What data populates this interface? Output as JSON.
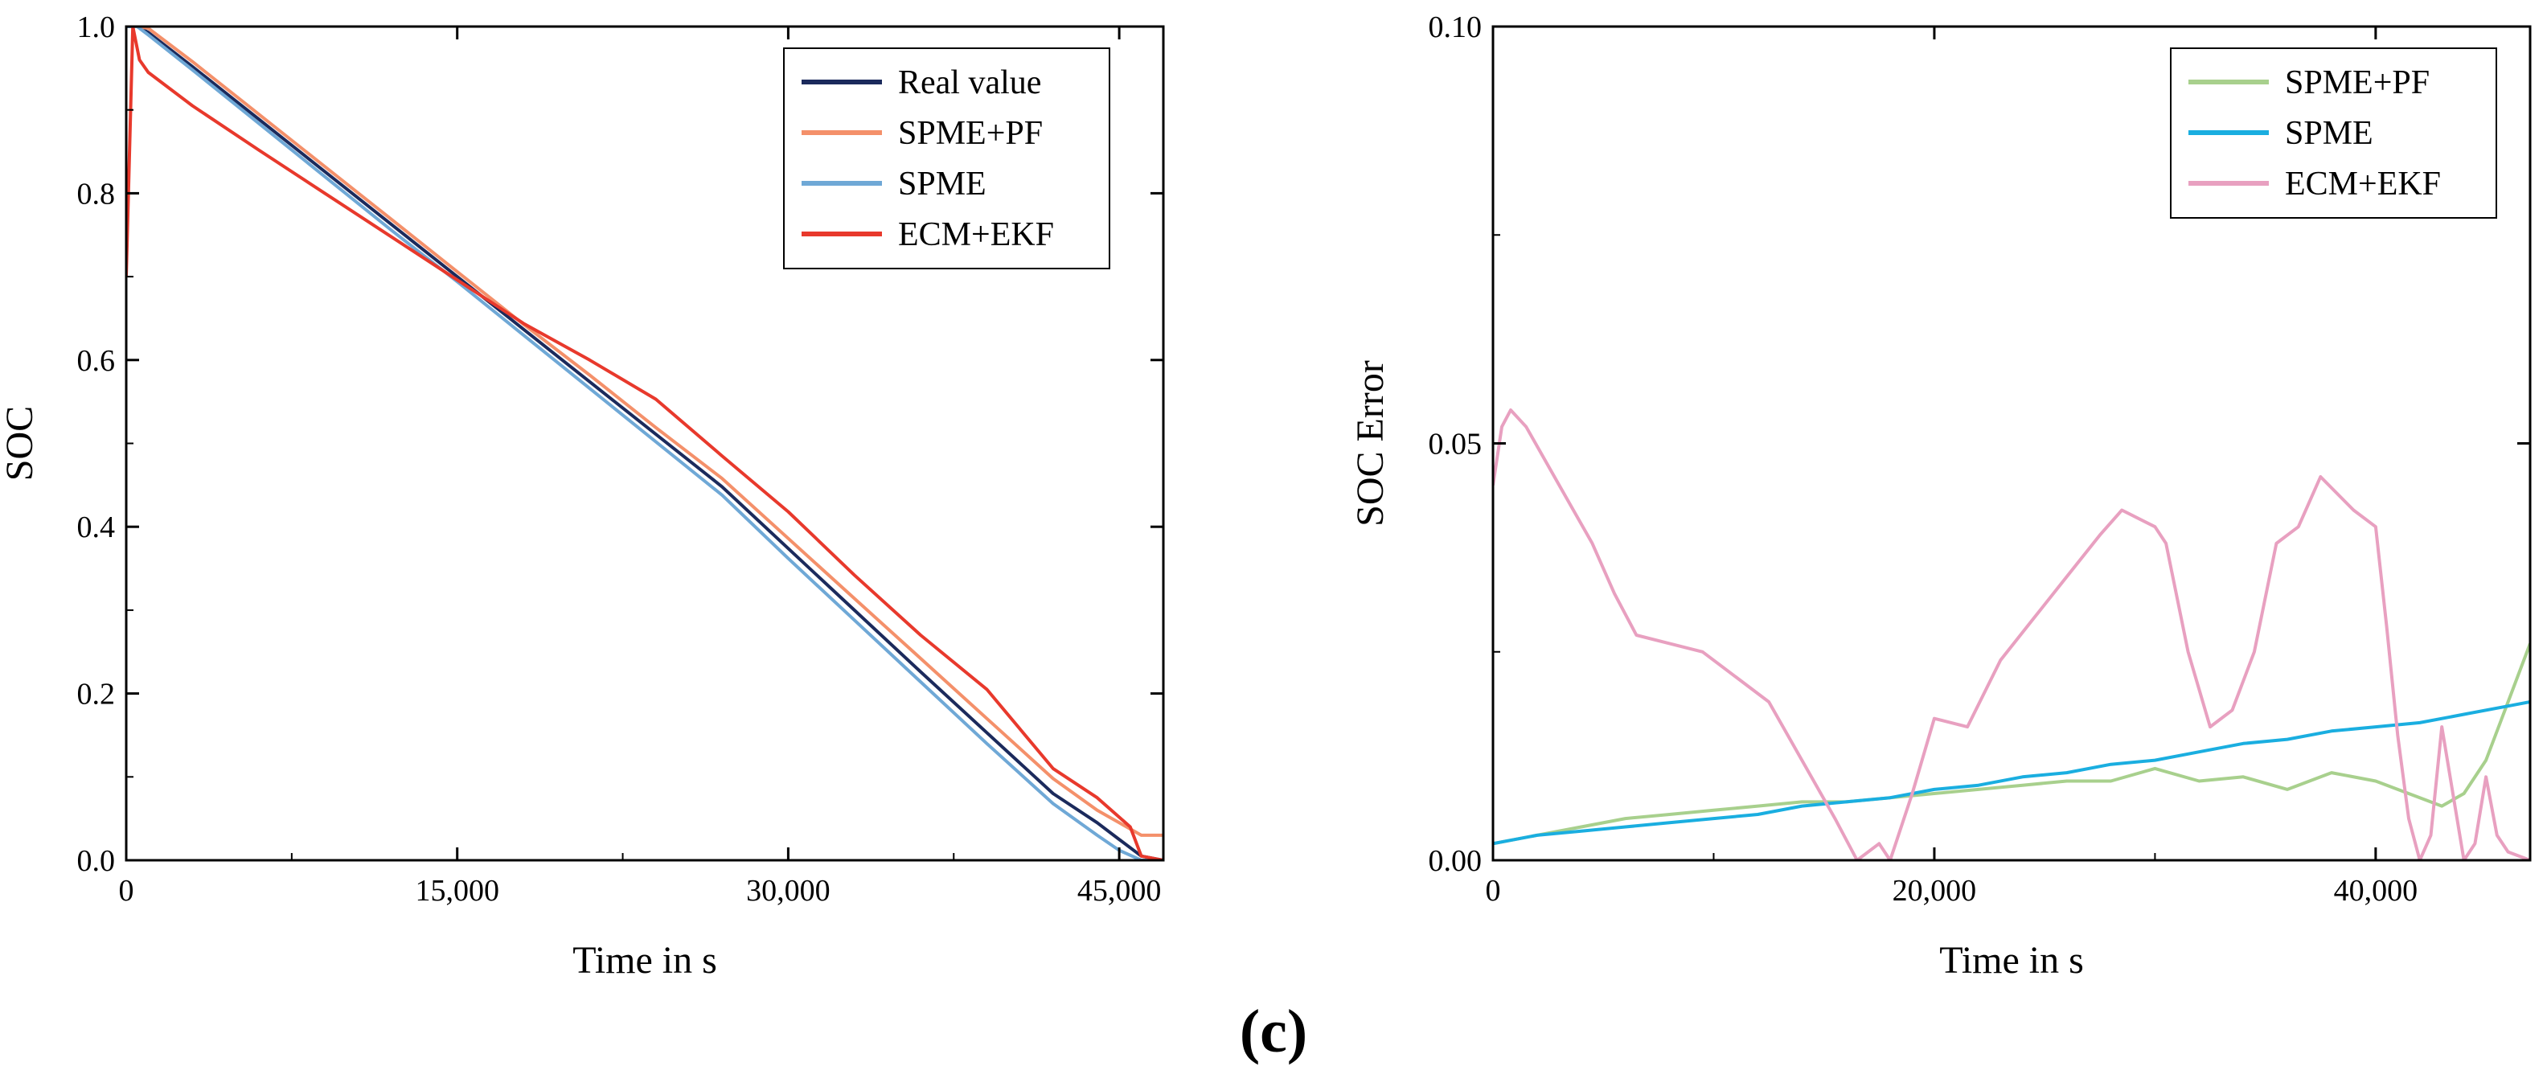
{
  "figure": {
    "caption": "(c)"
  },
  "chart_data": [
    {
      "type": "line",
      "xlabel": "Time in s",
      "ylabel": "SOC",
      "xlim": [
        0,
        47000
      ],
      "ylim": [
        0,
        1.0
      ],
      "xticks": [
        0,
        15000,
        30000,
        45000
      ],
      "xtick_labels": [
        "0",
        "15,000",
        "30,000",
        "45,000"
      ],
      "yticks": [
        0,
        0.2,
        0.4,
        0.6,
        0.8,
        1.0
      ],
      "ytick_labels": [
        "0.0",
        "0.2",
        "0.4",
        "0.6",
        "0.8",
        "1.0"
      ],
      "legend_position": "top-right",
      "series": [
        {
          "name": "Real value",
          "color": "#1b2a5c",
          "x": [
            0,
            500,
            1000,
            3000,
            6000,
            9000,
            12000,
            15000,
            18000,
            21000,
            24000,
            27000,
            30000,
            33000,
            36000,
            39000,
            42000,
            44000,
            45000,
            46000,
            47000
          ],
          "y": [
            1.0,
            1.0,
            0.993,
            0.952,
            0.889,
            0.826,
            0.763,
            0.7,
            0.637,
            0.574,
            0.511,
            0.448,
            0.374,
            0.3,
            0.226,
            0.153,
            0.08,
            0.045,
            0.025,
            0.005,
            0.0
          ]
        },
        {
          "name": "SPME+PF",
          "color": "#f4906a",
          "x": [
            0,
            500,
            1000,
            3000,
            6000,
            9000,
            12000,
            15000,
            18000,
            21000,
            24000,
            27000,
            30000,
            33000,
            36000,
            39000,
            42000,
            44000,
            45000,
            46000,
            47000
          ],
          "y": [
            1.0,
            1.0,
            0.998,
            0.958,
            0.895,
            0.832,
            0.769,
            0.706,
            0.643,
            0.582,
            0.519,
            0.458,
            0.386,
            0.314,
            0.242,
            0.17,
            0.098,
            0.06,
            0.045,
            0.03,
            0.03
          ]
        },
        {
          "name": "SPME",
          "color": "#6fa8d6",
          "x": [
            0,
            500,
            1000,
            3000,
            6000,
            9000,
            12000,
            15000,
            18000,
            21000,
            24000,
            27000,
            30000,
            33000,
            36000,
            39000,
            42000,
            44000,
            45000,
            46000,
            47000
          ],
          "y": [
            1.0,
            1.0,
            0.99,
            0.948,
            0.884,
            0.82,
            0.756,
            0.694,
            0.63,
            0.566,
            0.502,
            0.438,
            0.362,
            0.288,
            0.214,
            0.14,
            0.068,
            0.03,
            0.012,
            0.0,
            0.0
          ]
        },
        {
          "name": "ECM+EKF",
          "color": "#e8392c",
          "x": [
            0,
            300,
            600,
            1000,
            3000,
            6000,
            9000,
            12000,
            15000,
            18000,
            21000,
            24000,
            27000,
            30000,
            33000,
            36000,
            39000,
            42000,
            44000,
            45500,
            46000,
            47000
          ],
          "y": [
            0.7,
            1.0,
            0.96,
            0.945,
            0.905,
            0.852,
            0.8,
            0.748,
            0.696,
            0.644,
            0.6,
            0.553,
            0.485,
            0.418,
            0.342,
            0.27,
            0.205,
            0.11,
            0.075,
            0.04,
            0.005,
            0.0
          ]
        }
      ]
    },
    {
      "type": "line",
      "xlabel": "Time in s",
      "ylabel": "SOC Error",
      "xlim": [
        0,
        47000
      ],
      "ylim": [
        0,
        0.1
      ],
      "xticks": [
        0,
        20000,
        40000
      ],
      "xtick_labels": [
        "0",
        "20,000",
        "40,000"
      ],
      "yticks": [
        0,
        0.05,
        0.1
      ],
      "ytick_labels": [
        "0.00",
        "0.05",
        "0.10"
      ],
      "legend_position": "top-right",
      "series": [
        {
          "name": "SPME+PF",
          "color": "#a8d08d",
          "x": [
            0,
            2000,
            4000,
            6000,
            8000,
            10000,
            12000,
            14000,
            16000,
            18000,
            20000,
            22000,
            24000,
            26000,
            28000,
            30000,
            32000,
            34000,
            36000,
            38000,
            40000,
            42000,
            43000,
            44000,
            45000,
            46000,
            47000
          ],
          "y": [
            0.002,
            0.003,
            0.004,
            0.005,
            0.0055,
            0.006,
            0.0065,
            0.007,
            0.007,
            0.0075,
            0.008,
            0.0085,
            0.009,
            0.0095,
            0.0095,
            0.011,
            0.0095,
            0.01,
            0.0085,
            0.0105,
            0.0095,
            0.0075,
            0.0065,
            0.008,
            0.012,
            0.019,
            0.026
          ]
        },
        {
          "name": "SPME",
          "color": "#1aaee0",
          "x": [
            0,
            2000,
            4000,
            6000,
            8000,
            10000,
            12000,
            14000,
            16000,
            18000,
            20000,
            22000,
            24000,
            26000,
            28000,
            30000,
            32000,
            34000,
            36000,
            38000,
            40000,
            42000,
            44000,
            46000,
            47000
          ],
          "y": [
            0.002,
            0.003,
            0.0035,
            0.004,
            0.0045,
            0.005,
            0.0055,
            0.0065,
            0.007,
            0.0075,
            0.0085,
            0.009,
            0.01,
            0.0105,
            0.0115,
            0.012,
            0.013,
            0.014,
            0.0145,
            0.0155,
            0.016,
            0.0165,
            0.0175,
            0.0185,
            0.019
          ]
        },
        {
          "name": "ECM+EKF",
          "color": "#e8a0c0",
          "x": [
            0,
            400,
            800,
            1500,
            3000,
            4500,
            5500,
            6500,
            8000,
            9500,
            11000,
            12500,
            14000,
            15500,
            16500,
            17500,
            18000,
            19000,
            20000,
            21500,
            23000,
            24500,
            26000,
            27500,
            28500,
            30000,
            30500,
            31500,
            32500,
            33500,
            34500,
            35500,
            36500,
            37500,
            39000,
            40000,
            40500,
            41000,
            41500,
            42000,
            42500,
            43000,
            44000,
            44500,
            45000,
            45500,
            46000,
            47000
          ],
          "y": [
            0.045,
            0.052,
            0.054,
            0.052,
            0.045,
            0.038,
            0.032,
            0.027,
            0.026,
            0.025,
            0.022,
            0.019,
            0.012,
            0.005,
            0.0,
            0.002,
            0.0,
            0.008,
            0.017,
            0.016,
            0.024,
            0.029,
            0.034,
            0.039,
            0.042,
            0.04,
            0.038,
            0.025,
            0.016,
            0.018,
            0.025,
            0.038,
            0.04,
            0.046,
            0.042,
            0.04,
            0.028,
            0.015,
            0.005,
            0.0,
            0.003,
            0.016,
            0.0,
            0.002,
            0.01,
            0.003,
            0.001,
            0.0
          ]
        }
      ]
    }
  ]
}
